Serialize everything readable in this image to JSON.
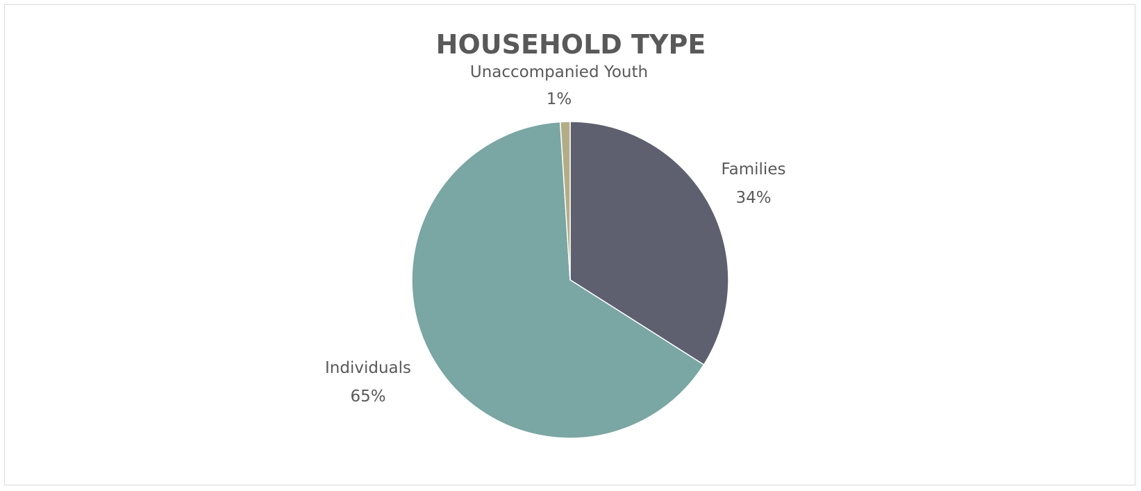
{
  "chart_data": {
    "type": "pie",
    "title": "HOUSEHOLD TYPE",
    "slices": [
      {
        "name": "Families",
        "value": 34,
        "label": "34%",
        "color": "#5e6070"
      },
      {
        "name": "Individuals",
        "value": 65,
        "label": "65%",
        "color": "#7aa6a3"
      },
      {
        "name": "Unaccompanied Youth",
        "value": 1,
        "label": "1%",
        "color": "#b3ad86"
      }
    ],
    "legend": "none",
    "data_labels": "outside"
  }
}
